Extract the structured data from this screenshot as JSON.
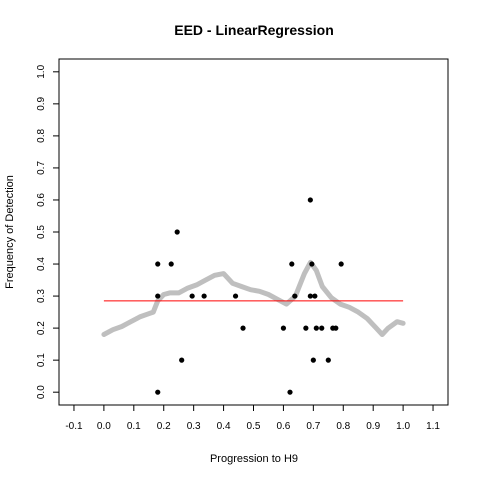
{
  "chart_data": {
    "type": "scatter",
    "title": "EED - LinearRegression",
    "xlabel": "Progression to H9",
    "ylabel": "Frequency of Detection",
    "xlim": [
      -0.15,
      1.15
    ],
    "ylim": [
      -0.04,
      1.04
    ],
    "xticks": [
      -0.1,
      0.0,
      0.1,
      0.2,
      0.3,
      0.4,
      0.5,
      0.6,
      0.7,
      0.8,
      0.9,
      1.0,
      1.1
    ],
    "xtick_labels": [
      "-0.1",
      "0.0",
      "0.1",
      "0.2",
      "0.3",
      "0.4",
      "0.5",
      "0.6",
      "0.7",
      "0.8",
      "0.9",
      "1.0",
      "1.1"
    ],
    "yticks": [
      0.0,
      0.1,
      0.2,
      0.3,
      0.4,
      0.5,
      0.6,
      0.7,
      0.8,
      0.9,
      1.0
    ],
    "ytick_labels": [
      "0.0",
      "0.1",
      "0.2",
      "0.3",
      "0.4",
      "0.5",
      "0.6",
      "0.7",
      "0.8",
      "0.9",
      "1.0"
    ],
    "grid": false,
    "colors": {
      "points": "#000000",
      "smooth": "#bfbfbf",
      "regression": "#ff0000"
    },
    "points": [
      {
        "x": 0.18,
        "y": 0.4
      },
      {
        "x": 0.18,
        "y": 0.3
      },
      {
        "x": 0.18,
        "y": 0.0
      },
      {
        "x": 0.225,
        "y": 0.4
      },
      {
        "x": 0.245,
        "y": 0.5
      },
      {
        "x": 0.26,
        "y": 0.1
      },
      {
        "x": 0.295,
        "y": 0.3
      },
      {
        "x": 0.335,
        "y": 0.3
      },
      {
        "x": 0.44,
        "y": 0.3
      },
      {
        "x": 0.465,
        "y": 0.2
      },
      {
        "x": 0.6,
        "y": 0.2
      },
      {
        "x": 0.622,
        "y": 0.0
      },
      {
        "x": 0.628,
        "y": 0.4
      },
      {
        "x": 0.638,
        "y": 0.3
      },
      {
        "x": 0.675,
        "y": 0.2
      },
      {
        "x": 0.69,
        "y": 0.6
      },
      {
        "x": 0.69,
        "y": 0.3
      },
      {
        "x": 0.695,
        "y": 0.4
      },
      {
        "x": 0.7,
        "y": 0.1
      },
      {
        "x": 0.705,
        "y": 0.3
      },
      {
        "x": 0.71,
        "y": 0.2
      },
      {
        "x": 0.728,
        "y": 0.2
      },
      {
        "x": 0.75,
        "y": 0.1
      },
      {
        "x": 0.765,
        "y": 0.2
      },
      {
        "x": 0.775,
        "y": 0.2
      },
      {
        "x": 0.793,
        "y": 0.4
      }
    ],
    "smooth_curve": [
      {
        "x": 0.0,
        "y": 0.18
      },
      {
        "x": 0.03,
        "y": 0.195
      },
      {
        "x": 0.06,
        "y": 0.205
      },
      {
        "x": 0.09,
        "y": 0.22
      },
      {
        "x": 0.12,
        "y": 0.235
      },
      {
        "x": 0.15,
        "y": 0.245
      },
      {
        "x": 0.165,
        "y": 0.25
      },
      {
        "x": 0.18,
        "y": 0.285
      },
      {
        "x": 0.2,
        "y": 0.305
      },
      {
        "x": 0.22,
        "y": 0.31
      },
      {
        "x": 0.25,
        "y": 0.31
      },
      {
        "x": 0.28,
        "y": 0.325
      },
      {
        "x": 0.31,
        "y": 0.335
      },
      {
        "x": 0.34,
        "y": 0.35
      },
      {
        "x": 0.37,
        "y": 0.365
      },
      {
        "x": 0.4,
        "y": 0.37
      },
      {
        "x": 0.43,
        "y": 0.34
      },
      {
        "x": 0.46,
        "y": 0.33
      },
      {
        "x": 0.49,
        "y": 0.32
      },
      {
        "x": 0.52,
        "y": 0.315
      },
      {
        "x": 0.55,
        "y": 0.305
      },
      {
        "x": 0.58,
        "y": 0.29
      },
      {
        "x": 0.61,
        "y": 0.275
      },
      {
        "x": 0.64,
        "y": 0.3
      },
      {
        "x": 0.67,
        "y": 0.37
      },
      {
        "x": 0.69,
        "y": 0.405
      },
      {
        "x": 0.71,
        "y": 0.38
      },
      {
        "x": 0.73,
        "y": 0.33
      },
      {
        "x": 0.76,
        "y": 0.295
      },
      {
        "x": 0.79,
        "y": 0.275
      },
      {
        "x": 0.82,
        "y": 0.265
      },
      {
        "x": 0.85,
        "y": 0.25
      },
      {
        "x": 0.88,
        "y": 0.23
      },
      {
        "x": 0.91,
        "y": 0.2
      },
      {
        "x": 0.93,
        "y": 0.18
      },
      {
        "x": 0.95,
        "y": 0.2
      },
      {
        "x": 0.98,
        "y": 0.22
      },
      {
        "x": 1.0,
        "y": 0.215
      }
    ],
    "regression_line": {
      "x": [
        0.0,
        1.0
      ],
      "y": [
        0.285,
        0.285
      ]
    }
  }
}
